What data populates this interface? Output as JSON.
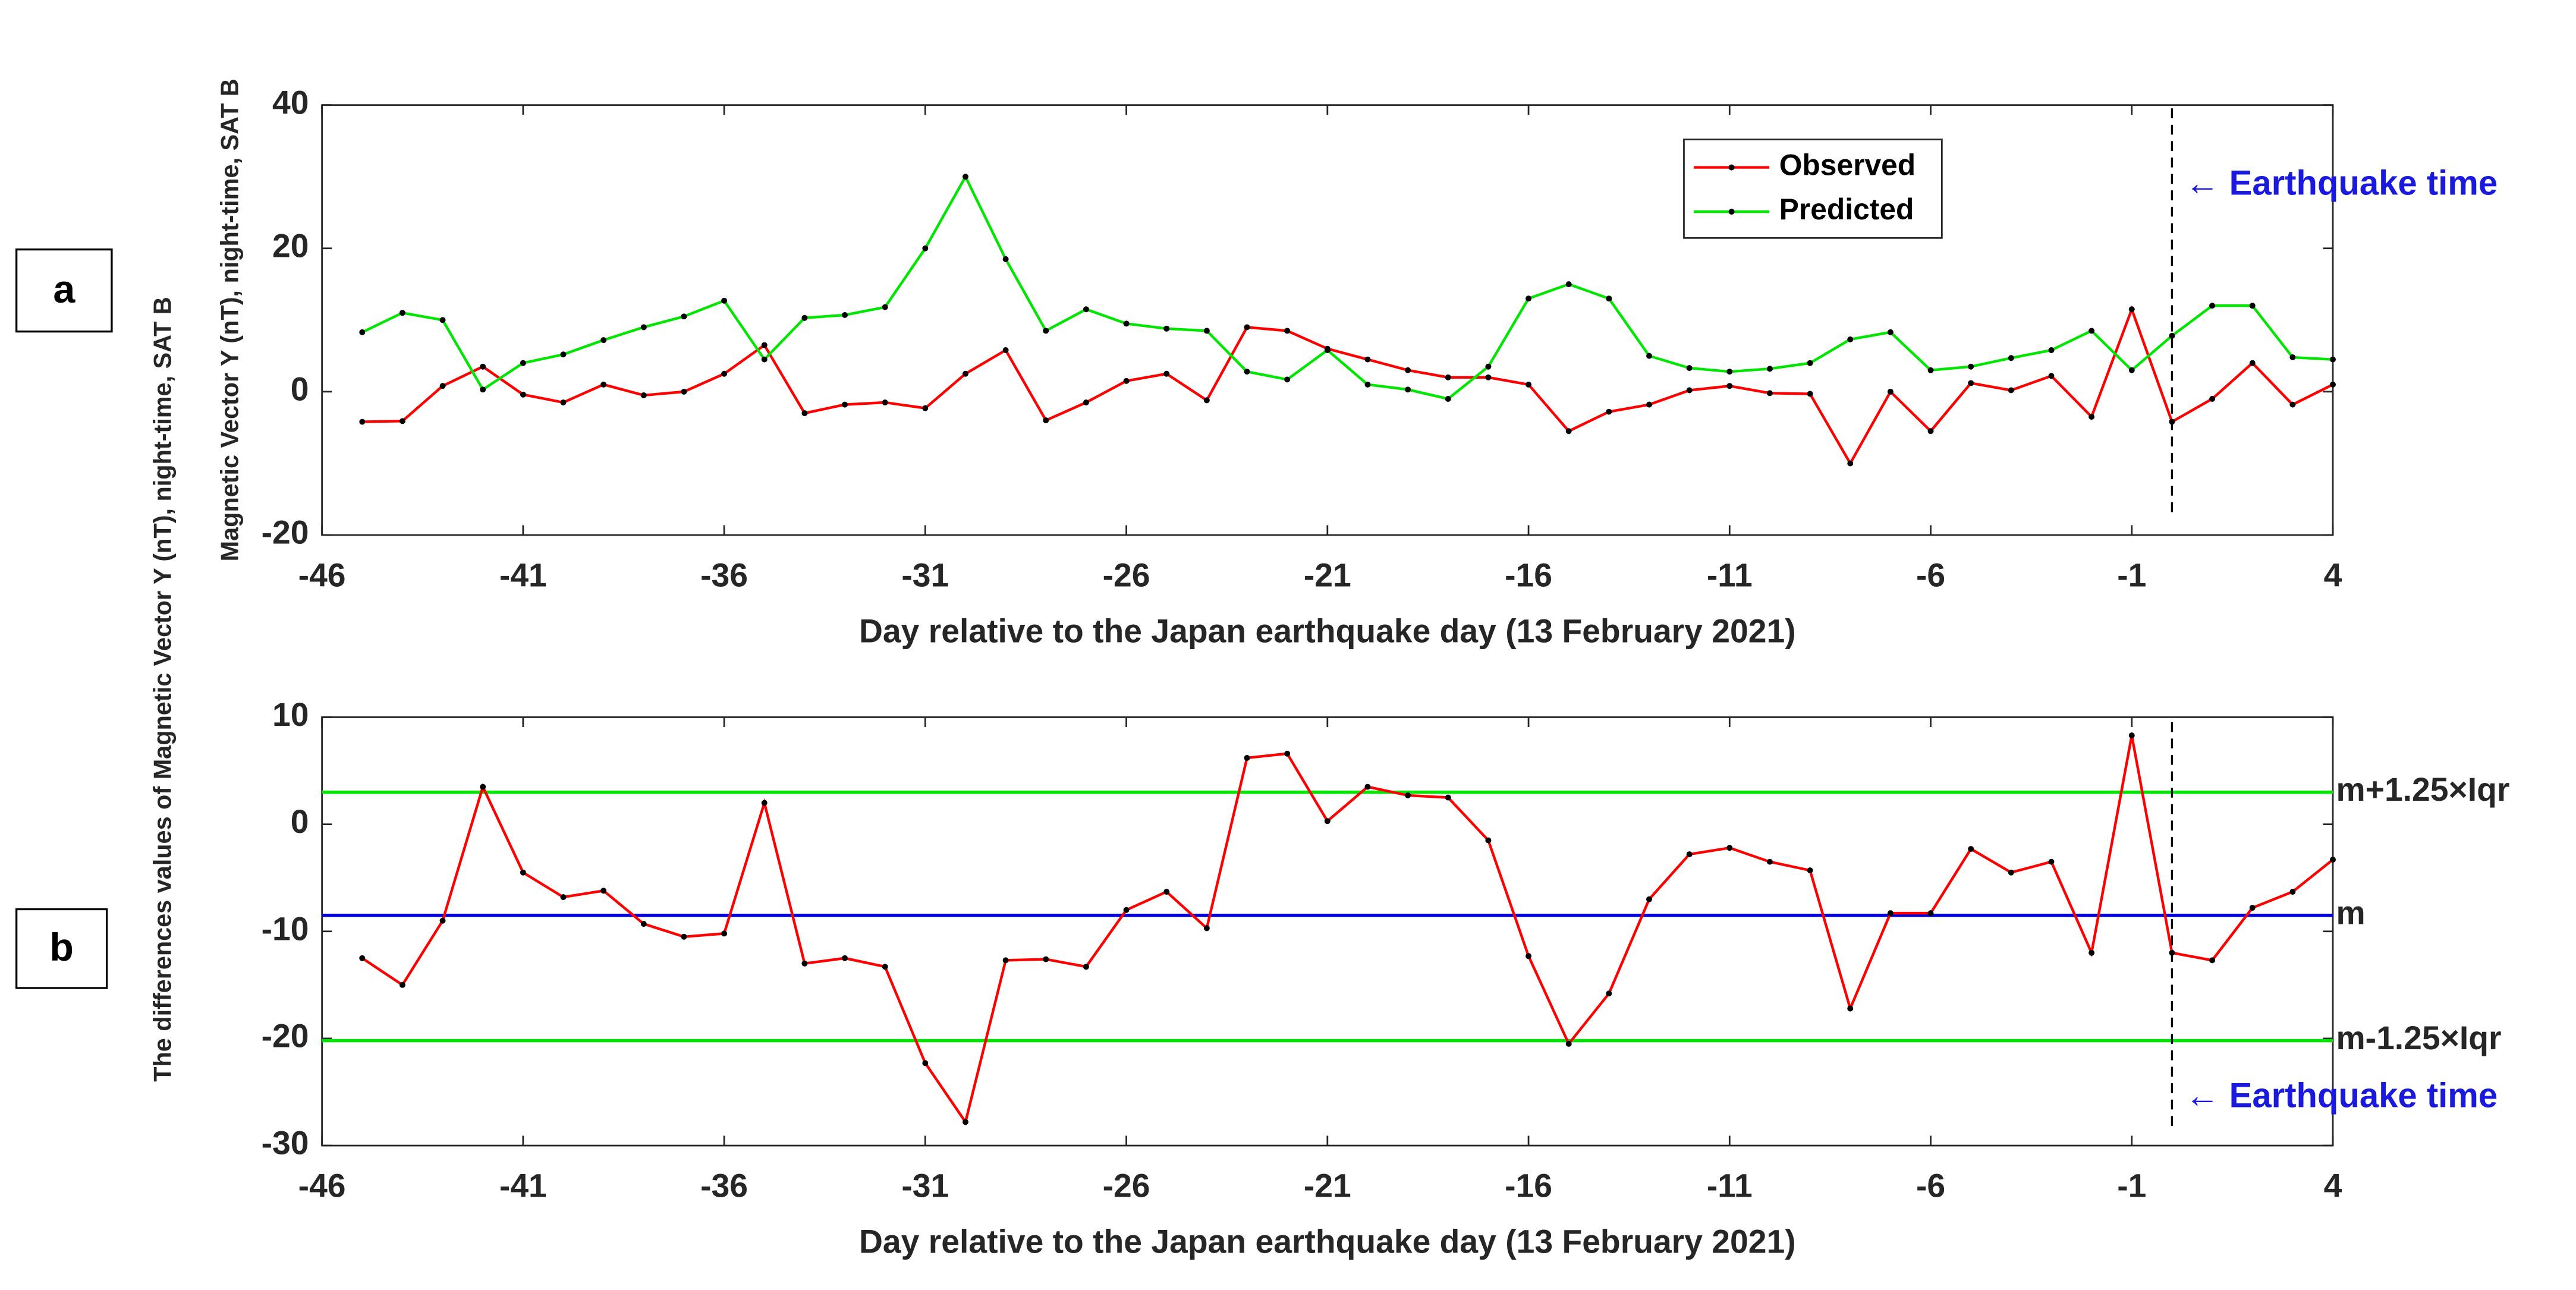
{
  "chart_data": [
    {
      "type": "line",
      "panel_label": "a",
      "xlabel": "Day relative to the Japan earthquake day (13 February 2021)",
      "ylabel": "Magnetic Vector Y (nT), night-time, SAT B",
      "x": [
        -45,
        -44,
        -43,
        -42,
        -41,
        -40,
        -39,
        -38,
        -37,
        -36,
        -35,
        -34,
        -33,
        -32,
        -31,
        -30,
        -29,
        -28,
        -27,
        -26,
        -25,
        -24,
        -23,
        -22,
        -21,
        -20,
        -19,
        -18,
        -17,
        -16,
        -15,
        -14,
        -13,
        -12,
        -11,
        -10,
        -9,
        -8,
        -7,
        -6,
        -5,
        -4,
        -3,
        -2,
        -1,
        0,
        1,
        2,
        3,
        4
      ],
      "series": [
        {
          "name": "Observed",
          "color": "#ff0000",
          "values": [
            -4.2,
            -4.1,
            0.8,
            3.5,
            -0.4,
            -1.5,
            1.0,
            -0.5,
            0,
            2.5,
            6.5,
            -3,
            -1.8,
            -1.5,
            -2.3,
            2.5,
            5.8,
            -4,
            -1.5,
            1.5,
            2.5,
            -1.2,
            9,
            8.5,
            6,
            4.5,
            3,
            2,
            2,
            1,
            -5.5,
            -2.8,
            -1.8,
            0.2,
            0.8,
            -0.2,
            -0.3,
            -10,
            0,
            -5.5,
            1.2,
            0.2,
            2.2,
            -3.5,
            11.5,
            -4.2,
            -1,
            4,
            -1.8,
            1
          ]
        },
        {
          "name": "Predicted",
          "color": "#00e600",
          "values": [
            8.3,
            11,
            10,
            0.3,
            4,
            5.2,
            7.2,
            9,
            10.5,
            12.7,
            4.5,
            10.3,
            10.7,
            11.8,
            20,
            30,
            18.5,
            8.5,
            11.5,
            9.5,
            8.8,
            8.5,
            2.8,
            1.7,
            5.8,
            1,
            0.3,
            -1,
            3.5,
            13,
            15,
            13,
            5,
            3.3,
            2.8,
            3.2,
            4,
            7.3,
            8.3,
            3,
            3.5,
            4.7,
            5.8,
            8.5,
            3,
            7.8,
            12,
            12,
            4.8,
            4.5
          ]
        }
      ],
      "xlim": [
        -46,
        4
      ],
      "xticks": [
        -46,
        -41,
        -36,
        -31,
        -26,
        -21,
        -16,
        -11,
        -6,
        -1,
        4
      ],
      "ylim": [
        -20,
        40
      ],
      "yticks": [
        -20,
        0,
        20,
        40
      ],
      "legend": "upper-center",
      "event_x": 0,
      "event_label": "← Earthquake time"
    },
    {
      "type": "line",
      "panel_label": "b",
      "xlabel": "Day relative to the Japan earthquake day (13 February 2021)",
      "ylabel": "The differences values of Magnetic Vector Y (nT), night-time, SAT B",
      "x": [
        -45,
        -44,
        -43,
        -42,
        -41,
        -40,
        -39,
        -38,
        -37,
        -36,
        -35,
        -34,
        -33,
        -32,
        -31,
        -30,
        -29,
        -28,
        -27,
        -26,
        -25,
        -24,
        -23,
        -22,
        -21,
        -20,
        -19,
        -18,
        -17,
        -16,
        -15,
        -14,
        -13,
        -12,
        -11,
        -10,
        -9,
        -8,
        -7,
        -6,
        -5,
        -4,
        -3,
        -2,
        -1,
        0,
        1,
        2,
        3,
        4
      ],
      "series": [
        {
          "color": "#ff0000",
          "values": [
            -12.5,
            -15,
            -9,
            3.5,
            -4.5,
            -6.8,
            -6.2,
            -9.3,
            -10.5,
            -10.2,
            2,
            -13,
            -12.5,
            -13.3,
            -22.3,
            -27.8,
            -12.7,
            -12.6,
            -13.3,
            -8,
            -6.3,
            -9.7,
            6.2,
            6.6,
            0.3,
            3.5,
            2.7,
            2.5,
            -1.5,
            -12.3,
            -20.5,
            -15.8,
            -7,
            -2.8,
            -2.2,
            -3.5,
            -4.3,
            -17.2,
            -8.3,
            -8.3,
            -2.3,
            -4.5,
            -3.5,
            -12,
            8.3,
            -12,
            -12.7,
            -7.8,
            -6.3,
            -3.3
          ]
        }
      ],
      "hlines": [
        {
          "label": "m+1.25×Iqr",
          "value": 3,
          "color": "#00e600"
        },
        {
          "label": "m",
          "value": -8.5,
          "color": "#0000dd"
        },
        {
          "label": "m-1.25×Iqr",
          "value": -20.2,
          "color": "#00e600"
        }
      ],
      "xlim": [
        -46,
        4
      ],
      "xticks": [
        -46,
        -41,
        -36,
        -31,
        -26,
        -21,
        -16,
        -11,
        -6,
        -1,
        4
      ],
      "ylim": [
        -30,
        10
      ],
      "yticks": [
        -30,
        -20,
        -10,
        0,
        10
      ],
      "event_x": 0,
      "event_label": "← Earthquake time"
    }
  ]
}
